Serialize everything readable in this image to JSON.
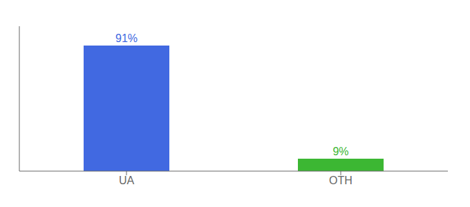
{
  "chart_data": {
    "type": "bar",
    "categories": [
      "UA",
      "OTH"
    ],
    "values": [
      91,
      9
    ],
    "value_labels": [
      "91%",
      "9%"
    ],
    "data_labels": true,
    "colors": [
      "#4169e1",
      "#3cb733"
    ],
    "ylim": [
      0,
      105
    ],
    "grid": false,
    "tick_labels": "x"
  }
}
